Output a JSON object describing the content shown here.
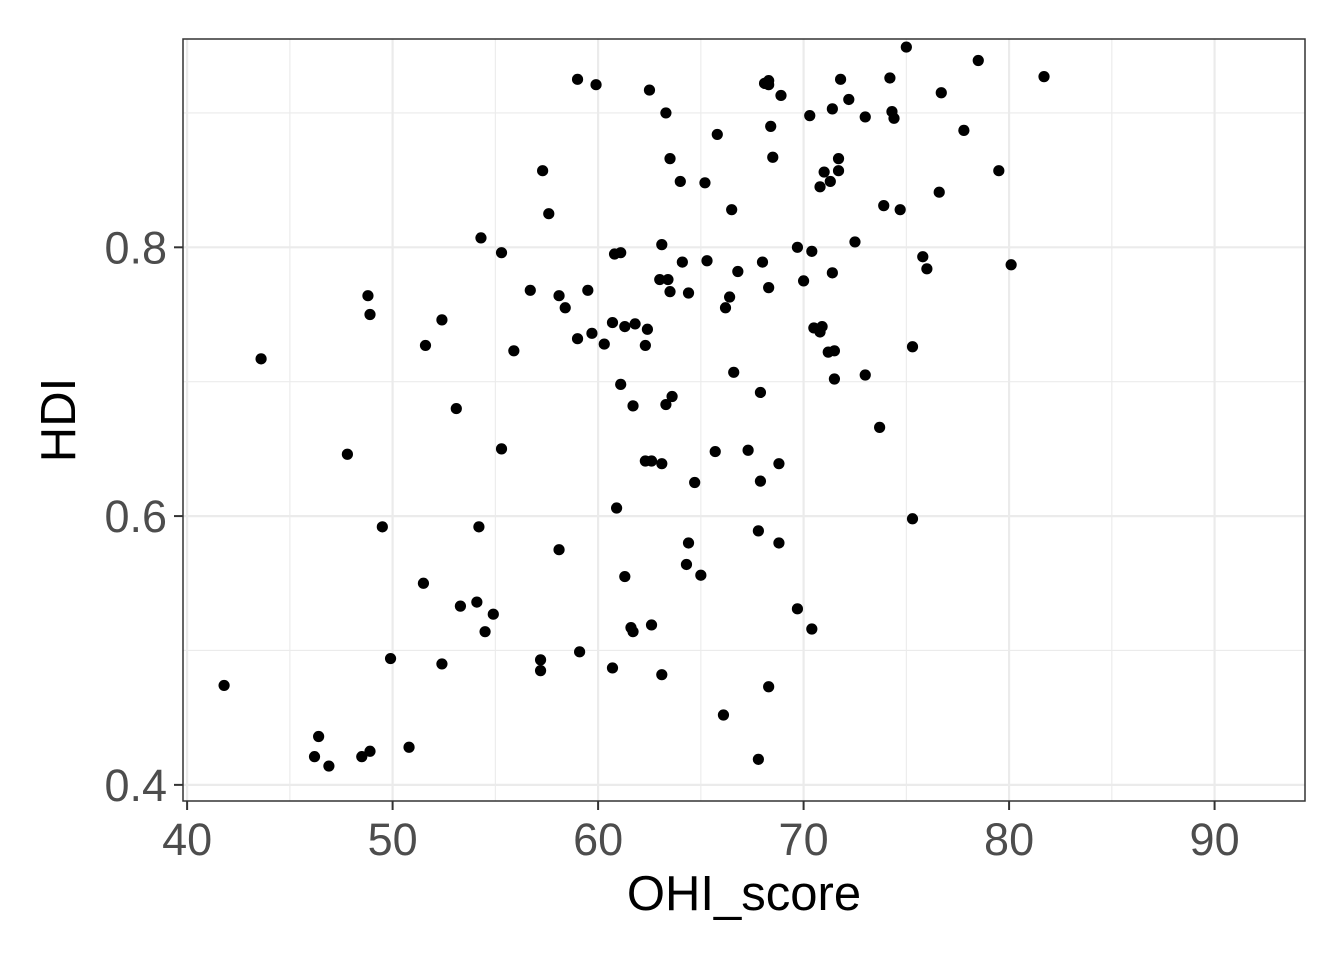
{
  "chart_data": {
    "type": "scatter",
    "title": "",
    "xlabel": "OHI_score",
    "ylabel": "HDI",
    "xlim": [
      39.8,
      94.4
    ],
    "ylim": [
      0.388,
      0.955
    ],
    "x_ticks": [
      40,
      50,
      60,
      70,
      80,
      90
    ],
    "x_tick_labels": [
      "40",
      "50",
      "60",
      "70",
      "80",
      "90"
    ],
    "y_ticks": [
      0.4,
      0.6,
      0.8
    ],
    "y_tick_labels": [
      "0.4",
      "0.6",
      "0.8"
    ],
    "x_minor_ticks": [
      45,
      55,
      65,
      75,
      85
    ],
    "y_minor_ticks": [
      0.5,
      0.7,
      0.9
    ],
    "grid": true,
    "legend": "none",
    "point_color": "#000000",
    "points": [
      [
        41.8,
        0.474
      ],
      [
        43.6,
        0.717
      ],
      [
        46.2,
        0.421
      ],
      [
        46.4,
        0.436
      ],
      [
        46.9,
        0.414
      ],
      [
        47.8,
        0.646
      ],
      [
        48.5,
        0.421
      ],
      [
        48.8,
        0.764
      ],
      [
        48.9,
        0.75
      ],
      [
        48.9,
        0.425
      ],
      [
        49.5,
        0.592
      ],
      [
        49.9,
        0.494
      ],
      [
        50.8,
        0.428
      ],
      [
        51.5,
        0.55
      ],
      [
        51.6,
        0.727
      ],
      [
        52.4,
        0.746
      ],
      [
        52.4,
        0.49
      ],
      [
        53.1,
        0.68
      ],
      [
        53.3,
        0.533
      ],
      [
        54.1,
        0.536
      ],
      [
        54.2,
        0.592
      ],
      [
        54.3,
        0.807
      ],
      [
        54.5,
        0.514
      ],
      [
        54.9,
        0.527
      ],
      [
        55.3,
        0.796
      ],
      [
        55.3,
        0.65
      ],
      [
        55.9,
        0.723
      ],
      [
        56.7,
        0.768
      ],
      [
        57.2,
        0.493
      ],
      [
        57.2,
        0.485
      ],
      [
        57.3,
        0.857
      ],
      [
        57.6,
        0.825
      ],
      [
        58.1,
        0.764
      ],
      [
        58.1,
        0.575
      ],
      [
        58.4,
        0.755
      ],
      [
        59.0,
        0.732
      ],
      [
        59.0,
        0.925
      ],
      [
        59.1,
        0.499
      ],
      [
        59.5,
        0.768
      ],
      [
        59.7,
        0.736
      ],
      [
        59.9,
        0.921
      ],
      [
        60.3,
        0.728
      ],
      [
        60.7,
        0.487
      ],
      [
        60.7,
        0.744
      ],
      [
        60.8,
        0.795
      ],
      [
        60.9,
        0.606
      ],
      [
        61.1,
        0.796
      ],
      [
        61.1,
        0.698
      ],
      [
        61.3,
        0.555
      ],
      [
        61.3,
        0.741
      ],
      [
        61.6,
        0.517
      ],
      [
        61.7,
        0.514
      ],
      [
        61.7,
        0.682
      ],
      [
        61.8,
        0.743
      ],
      [
        62.3,
        0.641
      ],
      [
        62.3,
        0.727
      ],
      [
        62.4,
        0.739
      ],
      [
        62.5,
        0.917
      ],
      [
        62.6,
        0.519
      ],
      [
        62.6,
        0.641
      ],
      [
        63.0,
        0.776
      ],
      [
        63.1,
        0.802
      ],
      [
        63.1,
        0.639
      ],
      [
        63.1,
        0.482
      ],
      [
        63.3,
        0.683
      ],
      [
        63.3,
        0.9
      ],
      [
        63.4,
        0.776
      ],
      [
        63.5,
        0.866
      ],
      [
        63.5,
        0.767
      ],
      [
        63.6,
        0.689
      ],
      [
        64.0,
        0.849
      ],
      [
        64.1,
        0.789
      ],
      [
        64.3,
        0.564
      ],
      [
        64.4,
        0.58
      ],
      [
        64.4,
        0.766
      ],
      [
        64.7,
        0.625
      ],
      [
        65.0,
        0.556
      ],
      [
        65.2,
        0.848
      ],
      [
        65.3,
        0.79
      ],
      [
        65.7,
        0.648
      ],
      [
        65.8,
        0.884
      ],
      [
        66.1,
        0.452
      ],
      [
        66.2,
        0.755
      ],
      [
        66.4,
        0.763
      ],
      [
        66.5,
        0.828
      ],
      [
        66.6,
        0.707
      ],
      [
        66.8,
        0.782
      ],
      [
        67.3,
        0.649
      ],
      [
        67.8,
        0.419
      ],
      [
        67.8,
        0.589
      ],
      [
        67.9,
        0.626
      ],
      [
        67.9,
        0.692
      ],
      [
        68.0,
        0.789
      ],
      [
        68.1,
        0.922
      ],
      [
        68.3,
        0.921
      ],
      [
        68.3,
        0.924
      ],
      [
        68.3,
        0.473
      ],
      [
        68.3,
        0.77
      ],
      [
        68.4,
        0.89
      ],
      [
        68.5,
        0.867
      ],
      [
        68.8,
        0.58
      ],
      [
        68.8,
        0.639
      ],
      [
        68.9,
        0.913
      ],
      [
        69.7,
        0.531
      ],
      [
        69.7,
        0.8
      ],
      [
        70.0,
        0.775
      ],
      [
        70.3,
        0.898
      ],
      [
        70.4,
        0.797
      ],
      [
        70.4,
        0.516
      ],
      [
        70.5,
        0.74
      ],
      [
        70.8,
        0.737
      ],
      [
        70.8,
        0.845
      ],
      [
        70.9,
        0.741
      ],
      [
        71.0,
        0.856
      ],
      [
        71.2,
        0.722
      ],
      [
        71.3,
        0.849
      ],
      [
        71.4,
        0.781
      ],
      [
        71.4,
        0.903
      ],
      [
        71.5,
        0.723
      ],
      [
        71.5,
        0.702
      ],
      [
        71.7,
        0.857
      ],
      [
        71.7,
        0.866
      ],
      [
        71.8,
        0.925
      ],
      [
        72.2,
        0.91
      ],
      [
        72.5,
        0.804
      ],
      [
        73.0,
        0.897
      ],
      [
        73.0,
        0.705
      ],
      [
        73.7,
        0.666
      ],
      [
        73.9,
        0.831
      ],
      [
        74.2,
        0.926
      ],
      [
        74.3,
        0.901
      ],
      [
        74.4,
        0.896
      ],
      [
        74.7,
        0.828
      ],
      [
        75.0,
        0.949
      ],
      [
        75.3,
        0.726
      ],
      [
        75.3,
        0.598
      ],
      [
        75.8,
        0.793
      ],
      [
        76.0,
        0.784
      ],
      [
        76.6,
        0.841
      ],
      [
        76.7,
        0.915
      ],
      [
        77.8,
        0.887
      ],
      [
        78.5,
        0.939
      ],
      [
        79.5,
        0.857
      ],
      [
        80.1,
        0.787
      ],
      [
        81.7,
        0.927
      ]
    ]
  }
}
